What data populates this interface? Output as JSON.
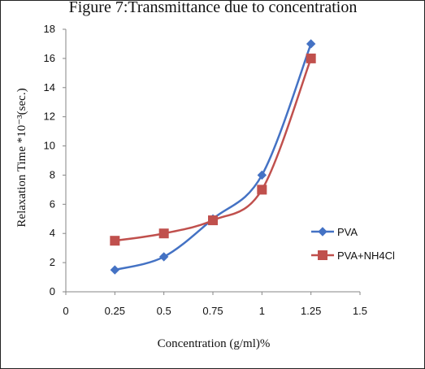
{
  "figure_caption": "Figure 7:Transmittance due to concentration",
  "chart_data": {
    "type": "line",
    "xlabel": "Concentration (g/ml)%",
    "ylabel": "Relaxation Time *10⁻³(sec.)",
    "xlim": [
      0,
      1.5
    ],
    "ylim": [
      0,
      18
    ],
    "x_ticks": [
      "0",
      "0.25",
      "0.5",
      "0.75",
      "1",
      "1.25",
      "1.5"
    ],
    "y_ticks": [
      "0",
      "2",
      "4",
      "6",
      "8",
      "10",
      "12",
      "14",
      "16",
      "18"
    ],
    "grid": false,
    "smooth": true,
    "legend_position": "right",
    "series": [
      {
        "name": "PVA",
        "color": "#4472C4",
        "marker": "diamond",
        "x": [
          0.25,
          0.5,
          0.75,
          1,
          1.25
        ],
        "y": [
          1.5,
          2.4,
          5.0,
          8.0,
          17.0
        ]
      },
      {
        "name": "PVA+NH4Cl",
        "color": "#C0504D",
        "marker": "square",
        "x": [
          0.25,
          0.5,
          0.75,
          1,
          1.25
        ],
        "y": [
          3.5,
          4.0,
          4.9,
          7.0,
          16.0
        ]
      }
    ]
  }
}
